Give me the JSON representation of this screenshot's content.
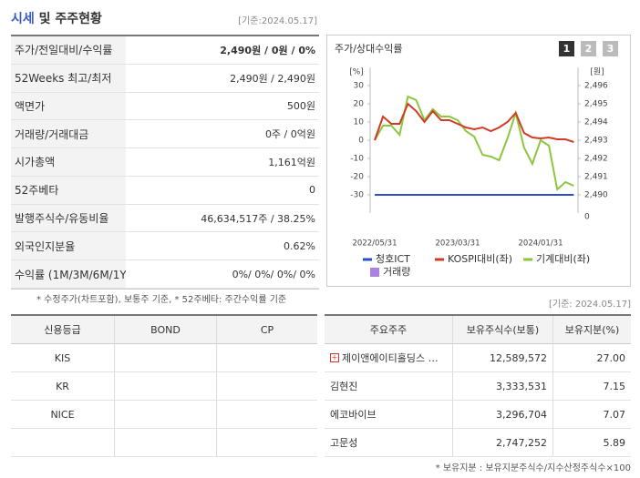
{
  "header": {
    "title_main": "시세",
    "title_rest": "및 주주현황",
    "date": "[기준:2024.05.17]"
  },
  "summary_table": {
    "rows": [
      [
        "주가/전일대비/수익률",
        "2,490원 / 0원 / 0%"
      ],
      [
        "52Weeks 최고/최저",
        "2,490원 / 2,490원"
      ],
      [
        "액면가",
        "500원"
      ],
      [
        "거래량/거래대금",
        "0주 / 0억원"
      ],
      [
        "시가총액",
        "1,161억원"
      ],
      [
        "52주베타",
        "0"
      ],
      [
        "발행주식수/유동비율",
        "46,634,517주 / 38.25%"
      ],
      [
        "외국인지분율",
        "0.62%"
      ],
      [
        "수익률 (1M/3M/6M/1Y)",
        "0%/ 0%/ 0%/ 0%"
      ]
    ]
  },
  "summary_note": "* 수정주가(차트포함), 보통주 기준, * 52주베타: 주간수익률 기준",
  "chart_data": {
    "type": "line",
    "title": "주가/상대수익률",
    "buttons": [
      "1",
      "2",
      "3"
    ],
    "y_unit": "[%]",
    "y2_unit": "[원]",
    "y2_bottom_label": "0",
    "categories": [
      "2022/05/31",
      null,
      null,
      null,
      null,
      null,
      null,
      null,
      null,
      null,
      "2023/03/31",
      null,
      null,
      null,
      null,
      null,
      null,
      null,
      null,
      null,
      "2024/01/31",
      null,
      null,
      null,
      null
    ],
    "series": [
      {
        "name": "청호ICT",
        "color": "#2b4fc7",
        "axis": "y2",
        "values": [
          2490,
          2490,
          2490,
          2490,
          2490,
          2490,
          2490,
          2490,
          2490,
          2490,
          2490,
          2490,
          2490,
          2490,
          2490,
          2490,
          2490,
          2490,
          2490,
          2490,
          2490,
          2490,
          2490,
          2490,
          2490
        ]
      },
      {
        "name": "KOSPI대비(좌)",
        "color": "#d13b25",
        "values": [
          0,
          13,
          9,
          9,
          20,
          16,
          10,
          16,
          11,
          11,
          9,
          7,
          6,
          7,
          5,
          7,
          10,
          15,
          4,
          1.5,
          1,
          1.5,
          0.5,
          0.5,
          -1
        ]
      },
      {
        "name": "기계대비(좌)",
        "color": "#8cc63f",
        "values": [
          0,
          8,
          8,
          3,
          24,
          22,
          11,
          17,
          13,
          13,
          11,
          5,
          2,
          -8,
          -9,
          -11,
          1,
          15,
          -4,
          -13,
          0,
          -3,
          -27,
          -23,
          -25
        ]
      },
      {
        "name": "거래량",
        "color": "#a983dd",
        "values": [
          null,
          null,
          null,
          null,
          null,
          null,
          null,
          null,
          null,
          null,
          null,
          null,
          null,
          null,
          null,
          null,
          null,
          null,
          null,
          null,
          null,
          null,
          null,
          null,
          null
        ]
      }
    ],
    "ylim": [
      -40,
      35
    ],
    "yticks": [
      30,
      20,
      10,
      0,
      -10,
      -20,
      -30
    ],
    "y2lim": [
      2489,
      2496.5
    ],
    "y2ticks": [
      {
        "value": 2496,
        "label": "2,496"
      },
      {
        "value": 2495,
        "label": "2,495"
      },
      {
        "value": 2494,
        "label": "2,494"
      },
      {
        "value": 2493,
        "label": "2,493"
      },
      {
        "value": 2492,
        "label": "2,492"
      },
      {
        "value": 2491,
        "label": "2,491"
      },
      {
        "value": 2490,
        "label": "2,490"
      }
    ],
    "grid": false
  },
  "rating_table": {
    "columns": [
      "신용등급",
      "BOND",
      "CP"
    ],
    "rows": [
      [
        "KIS"
      ],
      [
        "KR"
      ],
      [
        "NICE"
      ]
    ]
  },
  "shareholder_date": "[기준: 2024.05.17]",
  "shareholder_table": {
    "columns": [
      "주요주주",
      "보유주식수(보통)",
      "보유지분(%)"
    ],
    "rows": [
      [
        "제이앤에이티홀딩스 …",
        "12,589,572",
        "27.00"
      ],
      [
        "김현진",
        "3,333,531",
        "7.15"
      ],
      [
        "에코바이브",
        "3,296,704",
        "7.07"
      ],
      [
        "고문성",
        "2,747,252",
        "5.89"
      ]
    ]
  },
  "footnote": "* 보유지분 : 보유지분주식수/지수산정주식수×100"
}
